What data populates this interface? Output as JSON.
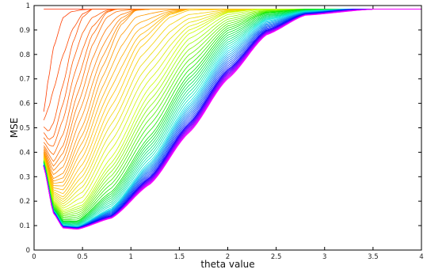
{
  "chart_data": {
    "type": "line",
    "title": "",
    "xlabel": "theta value",
    "ylabel": "MSE",
    "xlim": [
      0,
      4
    ],
    "ylim": [
      0,
      1
    ],
    "xticks": [
      0,
      0.5,
      1,
      1.5,
      2,
      2.5,
      3,
      3.5,
      4
    ],
    "xtick_labels": [
      "0",
      "0.5",
      "1",
      "1.5",
      "2",
      "2.5",
      "3",
      "3.5",
      "4"
    ],
    "yticks": [
      0,
      0.1,
      0.2,
      0.3,
      0.4,
      0.5,
      0.6,
      0.7,
      0.8,
      0.9,
      1
    ],
    "ytick_labels": [
      "0",
      "0.1",
      "0.2",
      "0.3",
      "0.4",
      "0.5",
      "0.6",
      "0.7",
      "0.8",
      "0.9",
      "1"
    ],
    "grid": false,
    "legend": "none",
    "colormap": "hsv red-to-magenta",
    "series_count": 60,
    "x_start": 0.1,
    "plateau": 0.985,
    "series": [
      {
        "color": "#ff2a00",
        "values": [
          [
            0.1,
            0.985
          ],
          [
            4.0,
            0.985
          ]
        ]
      },
      {
        "color": "#ff3b00",
        "values": [
          [
            0.1,
            0.57
          ],
          [
            0.15,
            0.72
          ],
          [
            0.2,
            0.85
          ],
          [
            0.3,
            0.97
          ],
          [
            0.38,
            0.985
          ],
          [
            4.0,
            0.985
          ]
        ]
      },
      {
        "color": "#ff5200",
        "values": [
          [
            0.1,
            0.5
          ],
          [
            0.15,
            0.47
          ],
          [
            0.2,
            0.5
          ],
          [
            0.3,
            0.66
          ],
          [
            0.4,
            0.84
          ],
          [
            0.5,
            0.95
          ],
          [
            0.6,
            0.985
          ],
          [
            4.0,
            0.985
          ]
        ]
      },
      {
        "color": "#ff6c00",
        "values": [
          [
            0.1,
            0.43
          ],
          [
            0.2,
            0.37
          ],
          [
            0.3,
            0.44
          ],
          [
            0.45,
            0.66
          ],
          [
            0.6,
            0.86
          ],
          [
            0.75,
            0.97
          ],
          [
            0.85,
            0.985
          ],
          [
            4.0,
            0.985
          ]
        ]
      },
      {
        "color": "#ff9000",
        "values": [
          [
            0.1,
            0.4
          ],
          [
            0.2,
            0.29
          ],
          [
            0.3,
            0.31
          ],
          [
            0.5,
            0.5
          ],
          [
            0.7,
            0.74
          ],
          [
            0.9,
            0.92
          ],
          [
            1.05,
            0.98
          ],
          [
            1.2,
            0.985
          ],
          [
            4.0,
            0.985
          ]
        ]
      },
      {
        "color": "#ffc400",
        "values": [
          [
            0.1,
            0.38
          ],
          [
            0.2,
            0.24
          ],
          [
            0.3,
            0.22
          ],
          [
            0.5,
            0.33
          ],
          [
            0.8,
            0.6
          ],
          [
            1.1,
            0.84
          ],
          [
            1.4,
            0.96
          ],
          [
            1.6,
            0.985
          ],
          [
            4.0,
            0.985
          ]
        ]
      },
      {
        "color": "#c8ff00",
        "values": [
          [
            0.1,
            0.37
          ],
          [
            0.2,
            0.2
          ],
          [
            0.3,
            0.16
          ],
          [
            0.5,
            0.19
          ],
          [
            0.8,
            0.37
          ],
          [
            1.2,
            0.66
          ],
          [
            1.6,
            0.88
          ],
          [
            2.0,
            0.97
          ],
          [
            2.3,
            0.985
          ],
          [
            4.0,
            0.985
          ]
        ]
      },
      {
        "color": "#00e600",
        "values": [
          [
            0.1,
            0.36
          ],
          [
            0.2,
            0.17
          ],
          [
            0.3,
            0.12
          ],
          [
            0.45,
            0.12
          ],
          [
            0.8,
            0.24
          ],
          [
            1.2,
            0.47
          ],
          [
            1.6,
            0.72
          ],
          [
            2.0,
            0.9
          ],
          [
            2.4,
            0.97
          ],
          [
            2.8,
            0.985
          ],
          [
            4.0,
            0.985
          ]
        ]
      },
      {
        "color": "#00e6e6",
        "values": [
          [
            0.1,
            0.35
          ],
          [
            0.2,
            0.16
          ],
          [
            0.3,
            0.1
          ],
          [
            0.45,
            0.095
          ],
          [
            0.8,
            0.17
          ],
          [
            1.2,
            0.36
          ],
          [
            1.6,
            0.6
          ],
          [
            2.0,
            0.82
          ],
          [
            2.4,
            0.94
          ],
          [
            2.8,
            0.975
          ],
          [
            3.2,
            0.985
          ],
          [
            4.0,
            0.985
          ]
        ]
      },
      {
        "color": "#0000ff",
        "values": [
          [
            0.1,
            0.345
          ],
          [
            0.2,
            0.155
          ],
          [
            0.3,
            0.095
          ],
          [
            0.45,
            0.09
          ],
          [
            0.8,
            0.14
          ],
          [
            1.2,
            0.3
          ],
          [
            1.6,
            0.52
          ],
          [
            2.0,
            0.74
          ],
          [
            2.4,
            0.9
          ],
          [
            2.8,
            0.965
          ],
          [
            3.3,
            0.985
          ],
          [
            4.0,
            0.985
          ]
        ]
      },
      {
        "color": "#ff00ff",
        "values": [
          [
            0.1,
            0.34
          ],
          [
            0.2,
            0.15
          ],
          [
            0.3,
            0.09
          ],
          [
            0.45,
            0.085
          ],
          [
            0.8,
            0.13
          ],
          [
            1.2,
            0.27
          ],
          [
            1.6,
            0.48
          ],
          [
            2.0,
            0.7
          ],
          [
            2.4,
            0.88
          ],
          [
            2.8,
            0.96
          ],
          [
            3.5,
            0.985
          ],
          [
            4.0,
            0.985
          ]
        ]
      }
    ]
  }
}
